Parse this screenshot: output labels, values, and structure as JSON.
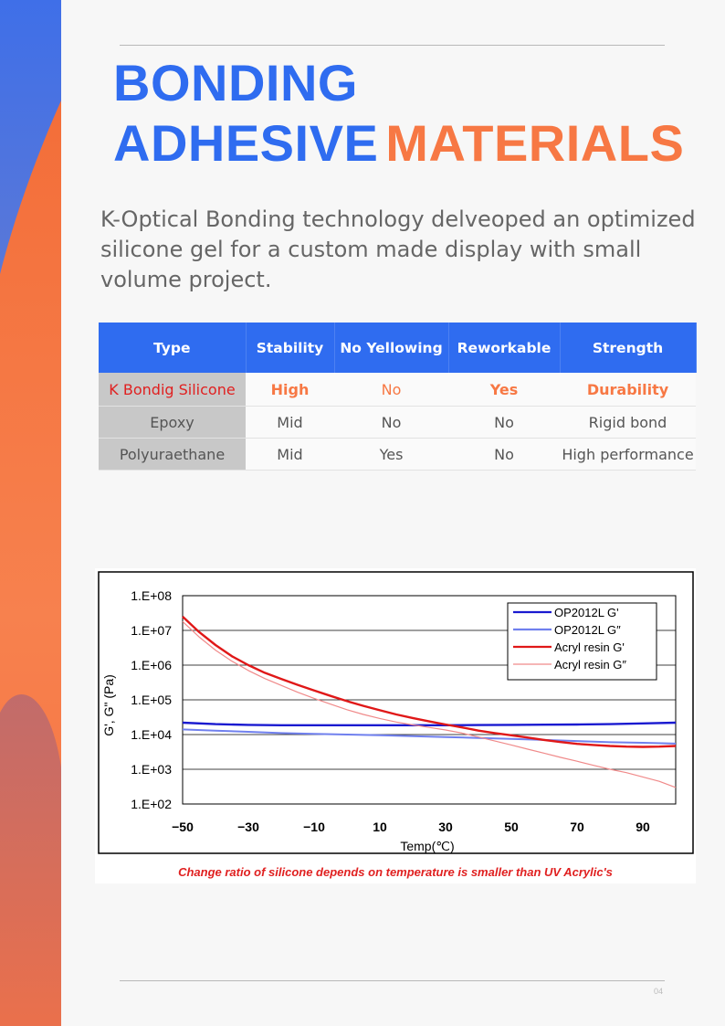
{
  "page": {
    "title_line1": "BONDING",
    "title_line2_blue": "ADHESIVE",
    "title_line2_orange": "MATERIALS",
    "intro": "K-Optical Bonding technology delveoped an optimized silicone gel for a custom made display with small volume project.",
    "page_number": "04"
  },
  "table": {
    "headers": [
      "Type",
      "Stability",
      "No Yellowing",
      "Reworkable",
      "Strength"
    ],
    "rows": [
      [
        "K Bondig Silicone",
        "High",
        "No",
        "Yes",
        "Durability"
      ],
      [
        "Epoxy",
        "Mid",
        "No",
        "No",
        "Rigid bond"
      ],
      [
        "Polyuraethane",
        "Mid",
        "Yes",
        "No",
        "High performance"
      ]
    ]
  },
  "chart_data": {
    "type": "line",
    "title": "",
    "xlabel": "Temp(℃)",
    "ylabel": "G', G\" (Pa)",
    "caption": "Change ratio of silicone depends on temperature is smaller than UV Acrylic's",
    "log_scale_y": true,
    "xlim": [
      -50,
      100
    ],
    "ylim": [
      100,
      100000000
    ],
    "x_ticks": [
      -50,
      -30,
      -10,
      10,
      30,
      50,
      70,
      90
    ],
    "x_tick_labels": [
      "−50",
      "−30",
      "−10",
      "10",
      "30",
      "50",
      "70",
      "90"
    ],
    "y_ticks": [
      100,
      1000,
      10000,
      100000,
      1000000,
      10000000,
      100000000
    ],
    "y_tick_labels": [
      "1.E+02",
      "1.E+03",
      "1.E+04",
      "1.E+05",
      "1.E+06",
      "1.E+07",
      "1.E+08"
    ],
    "grid": true,
    "legend_position": "top-right",
    "series": [
      {
        "name": "OP2012L G'",
        "color": "#1a1ad0",
        "x": [
          -50,
          -40,
          -30,
          -20,
          -10,
          0,
          10,
          20,
          30,
          40,
          50,
          60,
          70,
          80,
          90,
          100
        ],
        "y": [
          22000,
          20000,
          19000,
          18500,
          18500,
          18500,
          18500,
          18500,
          18500,
          18800,
          19000,
          19200,
          19500,
          20000,
          21000,
          22000
        ]
      },
      {
        "name": "OP2012L G″",
        "color": "#7080ee",
        "x": [
          -50,
          -40,
          -30,
          -20,
          -10,
          0,
          10,
          20,
          30,
          40,
          50,
          60,
          70,
          80,
          90,
          100
        ],
        "y": [
          14000,
          13000,
          12000,
          11000,
          10500,
          10000,
          9500,
          9000,
          8500,
          8000,
          7500,
          7000,
          6500,
          6000,
          5800,
          5500
        ]
      },
      {
        "name": "Acryl resin G'",
        "color": "#e01818",
        "x": [
          -50,
          -45,
          -40,
          -35,
          -30,
          -25,
          -20,
          -15,
          -10,
          -5,
          0,
          5,
          10,
          15,
          20,
          25,
          30,
          35,
          40,
          45,
          50,
          55,
          60,
          65,
          70,
          75,
          80,
          85,
          90,
          95,
          100
        ],
        "y": [
          25000000,
          9000000,
          3800000,
          1800000,
          1000000,
          600000,
          400000,
          270000,
          185000,
          130000,
          92000,
          67000,
          50000,
          38000,
          30000,
          24000,
          19500,
          16000,
          13000,
          11000,
          9500,
          8200,
          7000,
          6100,
          5400,
          5000,
          4700,
          4500,
          4400,
          4500,
          4700
        ]
      },
      {
        "name": "Acryl resin G″",
        "color": "#f08a8a",
        "x": [
          -50,
          -45,
          -40,
          -35,
          -30,
          -25,
          -20,
          -15,
          -10,
          -5,
          0,
          5,
          10,
          15,
          20,
          25,
          30,
          35,
          40,
          45,
          50,
          55,
          60,
          65,
          70,
          75,
          80,
          85,
          90,
          95,
          100
        ],
        "y": [
          18000000,
          6500000,
          2700000,
          1300000,
          700000,
          410000,
          260000,
          165000,
          110000,
          75000,
          52000,
          38000,
          29000,
          23000,
          19000,
          16000,
          13500,
          11000,
          8500,
          6500,
          5000,
          3800,
          2900,
          2200,
          1700,
          1300,
          1000,
          800,
          600,
          450,
          300
        ]
      }
    ]
  },
  "style": {
    "brand_blue": "#2f6cf0",
    "brand_orange": "#f77844",
    "highlight_red": "#e02020"
  }
}
